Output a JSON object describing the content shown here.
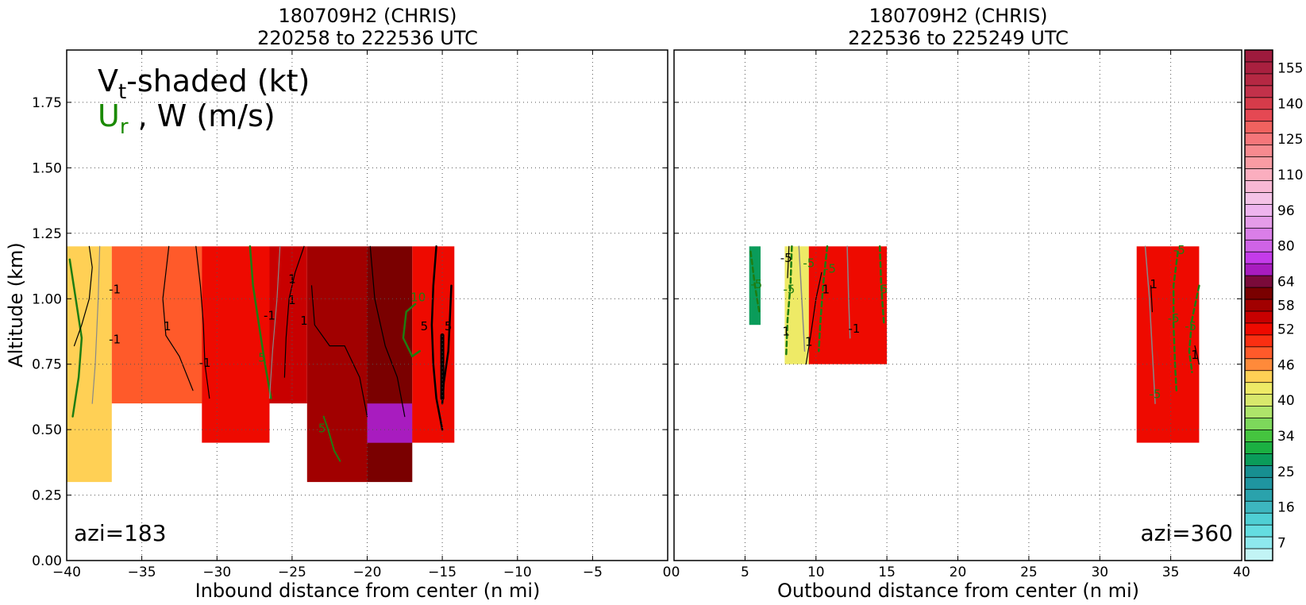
{
  "colors": {
    "frame": "#000000",
    "grid": "#555555",
    "radial_wind_contour": "#1e7d12",
    "w_contour": "#000000",
    "ur_label": "#1a8a00"
  },
  "chart_data": [
    {
      "type": "heatmap",
      "panel": "left",
      "title": "180709H2 (CHRIS)",
      "subtitle": "220258 to 222536 UTC",
      "xlabel": "Inbound distance from center (n mi)",
      "ylabel": "Altitude (km)",
      "xlim": [
        -40,
        0
      ],
      "ylim": [
        0,
        1.95
      ],
      "xticks": [
        "−40",
        "−35",
        "−30",
        "−25",
        "−20",
        "−15",
        "−10",
        "−5",
        "0"
      ],
      "yticks": [
        "0.00",
        "0.25",
        "0.50",
        "0.75",
        "1.00",
        "1.25",
        "1.50",
        "1.75"
      ],
      "grid": true,
      "annotation": "azi=183",
      "legend_text": {
        "vt": "V",
        "vt_sub": "t",
        "vt_rest": "-shaded (kt)",
        "ur": "U",
        "ur_sub": "r",
        "w": " , W (m/s)"
      },
      "contour_labels": [
        "-1",
        "-1",
        "1",
        "1",
        "-1",
        "-1",
        "1",
        "1",
        "5",
        "5",
        "5",
        "10",
        "5"
      ],
      "vt_shading_kt": [
        {
          "x": [
            -40,
            -37
          ],
          "z": [
            0.3,
            1.2
          ],
          "vt": 45
        },
        {
          "x": [
            -37,
            -31
          ],
          "z": [
            0.6,
            1.2
          ],
          "vt": 48
        },
        {
          "x": [
            -31,
            -26.5
          ],
          "z": [
            0.45,
            1.2
          ],
          "vt": 54
        },
        {
          "x": [
            -26.5,
            -24
          ],
          "z": [
            0.6,
            1.2
          ],
          "vt": 57
        },
        {
          "x": [
            -24,
            -20
          ],
          "z": [
            0.3,
            1.2
          ],
          "vt": 60
        },
        {
          "x": [
            -20,
            -17
          ],
          "z": [
            0.3,
            1.2
          ],
          "vt": 62
        },
        {
          "x": [
            -20,
            -17
          ],
          "z": [
            0.45,
            0.6
          ],
          "vt": 70
        },
        {
          "x": [
            -17,
            -14.2
          ],
          "z": [
            0.45,
            1.2
          ],
          "vt": 52
        }
      ]
    },
    {
      "type": "heatmap",
      "panel": "right",
      "title": "180709H2 (CHRIS)",
      "subtitle": "222536 to 225249 UTC",
      "xlabel": "Outbound distance from center (n mi)",
      "ylabel": "",
      "xlim": [
        0,
        40
      ],
      "ylim": [
        0,
        1.95
      ],
      "xticks": [
        "0",
        "5",
        "10",
        "15",
        "20",
        "25",
        "30",
        "35",
        "40"
      ],
      "grid": true,
      "annotation": "azi=360",
      "contour_labels": [
        "-5",
        "-5",
        "-5",
        "1",
        "-5",
        "1",
        "1",
        "-5",
        "-1",
        "5",
        "1",
        "-5",
        "-5",
        "1",
        "-5",
        "1"
      ],
      "vt_shading_kt": [
        {
          "x": [
            5.3,
            6.1
          ],
          "z": [
            0.9,
            1.2
          ],
          "vt": 28
        },
        {
          "x": [
            7.8,
            9.5
          ],
          "z": [
            0.75,
            1.2
          ],
          "vt": 42
        },
        {
          "x": [
            9.5,
            15.0
          ],
          "z": [
            0.75,
            1.2
          ],
          "vt": 52
        },
        {
          "x": [
            32.6,
            37.0
          ],
          "z": [
            0.45,
            1.2
          ],
          "vt": 52
        }
      ]
    }
  ],
  "colorbar": {
    "tick_labels": [
      "155",
      "140",
      "125",
      "110",
      "96",
      "80",
      "64",
      "58",
      "52",
      "46",
      "40",
      "34",
      "25",
      "16",
      "7"
    ],
    "levels_top_to_bottom": [
      {
        "value": 158,
        "color": "#9e1a3d"
      },
      {
        "value": 155,
        "color": "#a9203f"
      },
      {
        "value": 150,
        "color": "#b52843"
      },
      {
        "value": 145,
        "color": "#c2314a"
      },
      {
        "value": 140,
        "color": "#d63b4a"
      },
      {
        "value": 135,
        "color": "#e54853"
      },
      {
        "value": 130,
        "color": "#f0625f"
      },
      {
        "value": 125,
        "color": "#f5767a"
      },
      {
        "value": 120,
        "color": "#f78a8f"
      },
      {
        "value": 115,
        "color": "#f99ca3"
      },
      {
        "value": 110,
        "color": "#fbaebf"
      },
      {
        "value": 105,
        "color": "#f8b8d4"
      },
      {
        "value": 100,
        "color": "#f4c2e6"
      },
      {
        "value": 96,
        "color": "#eeb4ee"
      },
      {
        "value": 90,
        "color": "#e59ce9"
      },
      {
        "value": 85,
        "color": "#da7ee8"
      },
      {
        "value": 80,
        "color": "#cf63e6"
      },
      {
        "value": 75,
        "color": "#c43be9"
      },
      {
        "value": 70,
        "color": "#a81cbf"
      },
      {
        "value": 64,
        "color": "#7a0a3a"
      },
      {
        "value": 61,
        "color": "#7a0000"
      },
      {
        "value": 58,
        "color": "#a10000"
      },
      {
        "value": 55,
        "color": "#c80000"
      },
      {
        "value": 52,
        "color": "#ee0a00"
      },
      {
        "value": 50,
        "color": "#fa2f12"
      },
      {
        "value": 48,
        "color": "#ff5a2a"
      },
      {
        "value": 46,
        "color": "#ff8a3a"
      },
      {
        "value": 44,
        "color": "#ffd055"
      },
      {
        "value": 42,
        "color": "#eeea66"
      },
      {
        "value": 40,
        "color": "#d8e86c"
      },
      {
        "value": 38,
        "color": "#aee46a"
      },
      {
        "value": 36,
        "color": "#7dd85b"
      },
      {
        "value": 34,
        "color": "#45c43f"
      },
      {
        "value": 31,
        "color": "#1bb042"
      },
      {
        "value": 28,
        "color": "#0a9c5a"
      },
      {
        "value": 25,
        "color": "#178f91"
      },
      {
        "value": 22,
        "color": "#1f95a0"
      },
      {
        "value": 19,
        "color": "#2aa2ac"
      },
      {
        "value": 16,
        "color": "#3db6bf"
      },
      {
        "value": 13,
        "color": "#4fcfd4"
      },
      {
        "value": 10,
        "color": "#64dde1"
      },
      {
        "value": 7,
        "color": "#8ee9ee"
      },
      {
        "value": 4,
        "color": "#c2f4f5"
      }
    ]
  }
}
